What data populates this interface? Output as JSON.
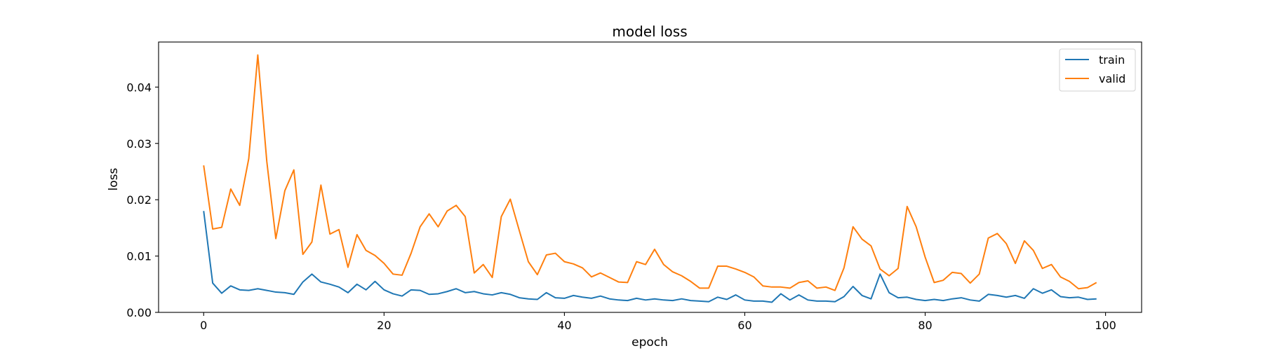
{
  "chart_data": {
    "type": "line",
    "title": "model loss",
    "xlabel": "epoch",
    "ylabel": "loss",
    "xlim": [
      -5,
      104
    ],
    "ylim": [
      0,
      0.048
    ],
    "xticks": [
      0,
      20,
      40,
      60,
      80,
      100
    ],
    "xtick_labels": [
      "0",
      "20",
      "40",
      "60",
      "80",
      "100"
    ],
    "yticks": [
      0.0,
      0.01,
      0.02,
      0.03,
      0.04
    ],
    "ytick_labels": [
      "0.00",
      "0.01",
      "0.02",
      "0.03",
      "0.04"
    ],
    "grid": false,
    "legend_position": "top-right",
    "x": [
      0,
      1,
      2,
      3,
      4,
      5,
      6,
      7,
      8,
      9,
      10,
      11,
      12,
      13,
      14,
      15,
      16,
      17,
      18,
      19,
      20,
      21,
      22,
      23,
      24,
      25,
      26,
      27,
      28,
      29,
      30,
      31,
      32,
      33,
      34,
      35,
      36,
      37,
      38,
      39,
      40,
      41,
      42,
      43,
      44,
      45,
      46,
      47,
      48,
      49,
      50,
      51,
      52,
      53,
      54,
      55,
      56,
      57,
      58,
      59,
      60,
      61,
      62,
      63,
      64,
      65,
      66,
      67,
      68,
      69,
      70,
      71,
      72,
      73,
      74,
      75,
      76,
      77,
      78,
      79,
      80,
      81,
      82,
      83,
      84,
      85,
      86,
      87,
      88,
      89,
      90,
      91,
      92,
      93,
      94,
      95,
      96,
      97,
      98,
      99
    ],
    "series": [
      {
        "name": "train",
        "color": "#1f77b4",
        "values": [
          0.018,
          0.0052,
          0.0034,
          0.0047,
          0.004,
          0.0039,
          0.0042,
          0.0039,
          0.0036,
          0.0035,
          0.0032,
          0.0054,
          0.0068,
          0.0054,
          0.005,
          0.0045,
          0.0035,
          0.005,
          0.004,
          0.0055,
          0.004,
          0.0033,
          0.0029,
          0.004,
          0.0039,
          0.0032,
          0.0033,
          0.0037,
          0.0042,
          0.0035,
          0.0037,
          0.0033,
          0.0031,
          0.0035,
          0.0032,
          0.0026,
          0.0024,
          0.0023,
          0.0035,
          0.0026,
          0.0025,
          0.003,
          0.0027,
          0.0025,
          0.0029,
          0.0024,
          0.0022,
          0.0021,
          0.0025,
          0.0022,
          0.0024,
          0.0022,
          0.0021,
          0.0024,
          0.0021,
          0.002,
          0.0019,
          0.0027,
          0.0023,
          0.0031,
          0.0022,
          0.002,
          0.002,
          0.0018,
          0.0033,
          0.0022,
          0.0031,
          0.0022,
          0.002,
          0.002,
          0.0019,
          0.0028,
          0.0046,
          0.003,
          0.0024,
          0.0068,
          0.0035,
          0.0026,
          0.0027,
          0.0023,
          0.0021,
          0.0023,
          0.0021,
          0.0024,
          0.0026,
          0.0022,
          0.002,
          0.0032,
          0.003,
          0.0027,
          0.003,
          0.0025,
          0.0042,
          0.0034,
          0.004,
          0.0028,
          0.0026,
          0.0027,
          0.0023,
          0.0024
        ]
      },
      {
        "name": "valid",
        "color": "#ff7f0e",
        "values": [
          0.0261,
          0.0148,
          0.0151,
          0.0219,
          0.019,
          0.0273,
          0.0457,
          0.0268,
          0.0131,
          0.0216,
          0.0253,
          0.0103,
          0.0125,
          0.0226,
          0.0139,
          0.0147,
          0.008,
          0.0138,
          0.011,
          0.0101,
          0.0087,
          0.0068,
          0.0066,
          0.0105,
          0.0152,
          0.0175,
          0.0152,
          0.018,
          0.019,
          0.017,
          0.007,
          0.0085,
          0.0062,
          0.017,
          0.0201,
          0.0145,
          0.009,
          0.0067,
          0.0102,
          0.0105,
          0.009,
          0.0086,
          0.0079,
          0.0063,
          0.007,
          0.0062,
          0.0054,
          0.0053,
          0.009,
          0.0085,
          0.0112,
          0.0085,
          0.0072,
          0.0065,
          0.0055,
          0.0043,
          0.0043,
          0.0082,
          0.0082,
          0.0077,
          0.0071,
          0.0063,
          0.0047,
          0.0045,
          0.0045,
          0.0043,
          0.0053,
          0.0056,
          0.0043,
          0.0045,
          0.0039,
          0.0079,
          0.0152,
          0.013,
          0.0118,
          0.0077,
          0.0065,
          0.0078,
          0.0188,
          0.0152,
          0.0098,
          0.0053,
          0.0057,
          0.0071,
          0.0069,
          0.0052,
          0.0068,
          0.0132,
          0.014,
          0.0122,
          0.0087,
          0.0127,
          0.011,
          0.0078,
          0.0085,
          0.0063,
          0.0055,
          0.0042,
          0.0044,
          0.0053
        ]
      }
    ]
  }
}
